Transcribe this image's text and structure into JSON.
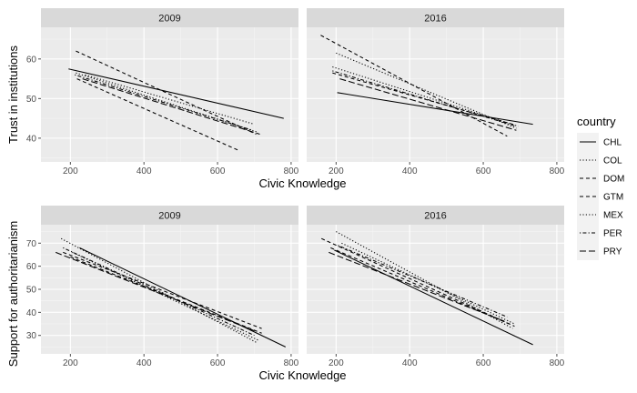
{
  "chart_data": {
    "type": "line",
    "legend": {
      "title": "country",
      "placement": "right"
    },
    "linetypes": {
      "CHL": "solid",
      "COL": "dotted",
      "DOM": "dashed",
      "GTM": "dashed",
      "MEX": "dotted",
      "PER": "dashdot",
      "PRY": "longdash"
    },
    "countries": [
      "CHL",
      "COL",
      "DOM",
      "GTM",
      "MEX",
      "PER",
      "PRY"
    ],
    "rows": [
      {
        "ylabel": "Trust in institutions",
        "xlabel": "Civic Knowledge",
        "xlim": [
          120,
          820
        ],
        "ylim": [
          34,
          68
        ],
        "xticks": [
          200,
          400,
          600,
          800
        ],
        "yticks": [
          40,
          50,
          60
        ],
        "grid": true,
        "panels": [
          {
            "strip": "2009",
            "series": [
              {
                "name": "CHL",
                "x": [
                  195,
                  780
                ],
                "y": [
                  57.5,
                  45.0
                ]
              },
              {
                "name": "COL",
                "x": [
                  215,
                  710
                ],
                "y": [
                  56.5,
                  41.5
                ]
              },
              {
                "name": "DOM",
                "x": [
                  218,
                  655
                ],
                "y": [
                  55.0,
                  37.0
                ]
              },
              {
                "name": "GTM",
                "x": [
                  215,
                  705
                ],
                "y": [
                  62.0,
                  41.0
                ]
              },
              {
                "name": "MEX",
                "x": [
                  240,
                  700
                ],
                "y": [
                  56.0,
                  43.5
                ]
              },
              {
                "name": "PER",
                "x": [
                  212,
                  695
                ],
                "y": [
                  56.0,
                  42.0
                ]
              },
              {
                "name": "PRY",
                "x": [
                  233,
                  715
                ],
                "y": [
                  55.0,
                  41.0
                ]
              }
            ]
          },
          {
            "strip": "2016",
            "series": [
              {
                "name": "CHL",
                "x": [
                  203,
                  735
                ],
                "y": [
                  51.5,
                  43.5
                ]
              },
              {
                "name": "COL",
                "x": [
                  190,
                  695
                ],
                "y": [
                  58.0,
                  43.0
                ]
              },
              {
                "name": "DOM",
                "x": [
                  190,
                  680
                ],
                "y": [
                  56.5,
                  43.5
                ]
              },
              {
                "name": "GTM",
                "x": [
                  158,
                  665
                ],
                "y": [
                  66.0,
                  40.5
                ]
              },
              {
                "name": "MEX",
                "x": [
                  200,
                  690
                ],
                "y": [
                  61.5,
                  42.5
                ]
              },
              {
                "name": "PER",
                "x": [
                  190,
                  690
                ],
                "y": [
                  57.0,
                  43.0
                ]
              },
              {
                "name": "PRY",
                "x": [
                  210,
                  690
                ],
                "y": [
                  55.0,
                  42.0
                ]
              }
            ]
          }
        ]
      },
      {
        "ylabel": "Support for authoritarianism",
        "xlabel": "Civic Knowledge",
        "xlim": [
          120,
          820
        ],
        "ylim": [
          22,
          78
        ],
        "xticks": [
          200,
          400,
          600,
          800
        ],
        "yticks": [
          30,
          40,
          50,
          60,
          70
        ],
        "grid": true,
        "panels": [
          {
            "strip": "2009",
            "series": [
              {
                "name": "CHL",
                "x": [
                  225,
                  785
                ],
                "y": [
                  68.0,
                  25.0
                ]
              },
              {
                "name": "COL",
                "x": [
                  205,
                  710
                ],
                "y": [
                  66.0,
                  28.0
                ]
              },
              {
                "name": "DOM",
                "x": [
                  200,
                  720
                ],
                "y": [
                  64.0,
                  31.0
                ]
              },
              {
                "name": "GTM",
                "x": [
                  180,
                  720
                ],
                "y": [
                  66.0,
                  33.0
                ]
              },
              {
                "name": "MEX",
                "x": [
                  175,
                  705
                ],
                "y": [
                  72.0,
                  27.0
                ]
              },
              {
                "name": "PER",
                "x": [
                  180,
                  700
                ],
                "y": [
                  68.0,
                  30.0
                ]
              },
              {
                "name": "PRY",
                "x": [
                  160,
                  700
                ],
                "y": [
                  66.0,
                  32.0
                ]
              }
            ]
          },
          {
            "strip": "2016",
            "series": [
              {
                "name": "CHL",
                "x": [
                  195,
                  735
                ],
                "y": [
                  67.0,
                  26.0
                ]
              },
              {
                "name": "COL",
                "x": [
                  215,
                  685
                ],
                "y": [
                  70.0,
                  35.0
                ]
              },
              {
                "name": "DOM",
                "x": [
                  160,
                  685
                ],
                "y": [
                  72.0,
                  34.0
                ]
              },
              {
                "name": "GTM",
                "x": [
                  185,
                  670
                ],
                "y": [
                  68.0,
                  35.0
                ]
              },
              {
                "name": "MEX",
                "x": [
                  200,
                  680
                ],
                "y": [
                  75.0,
                  33.0
                ]
              },
              {
                "name": "PER",
                "x": [
                  205,
                  665
                ],
                "y": [
                  69.0,
                  38.0
                ]
              },
              {
                "name": "PRY",
                "x": [
                  180,
                  660
                ],
                "y": [
                  66.0,
                  36.0
                ]
              }
            ]
          }
        ]
      }
    ]
  }
}
